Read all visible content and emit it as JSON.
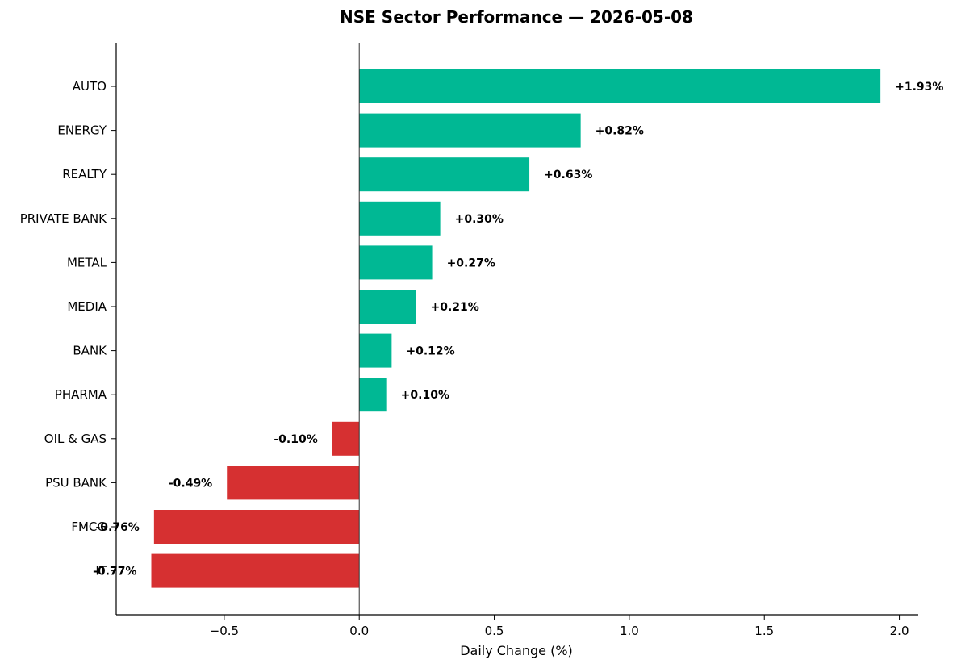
{
  "chart_data": {
    "type": "bar",
    "orientation": "horizontal",
    "title": "NSE Sector Performance — 2026-05-08",
    "xlabel": "Daily Change (%)",
    "ylabel": "",
    "xlim": [
      -0.9,
      2.07
    ],
    "xticks": [
      -0.5,
      0.0,
      0.5,
      1.0,
      1.5,
      2.0
    ],
    "xtick_labels": [
      "−0.5",
      "0.0",
      "0.5",
      "1.0",
      "1.5",
      "2.0"
    ],
    "grid": false,
    "categories": [
      "AUTO",
      "ENERGY",
      "REALTY",
      "PRIVATE BANK",
      "METAL",
      "MEDIA",
      "BANK",
      "PHARMA",
      "OIL & GAS",
      "PSU BANK",
      "FMCG",
      "IT"
    ],
    "values": [
      1.93,
      0.82,
      0.63,
      0.3,
      0.27,
      0.21,
      0.12,
      0.1,
      -0.1,
      -0.49,
      -0.76,
      -0.77
    ],
    "value_labels": [
      "+1.93%",
      "+0.82%",
      "+0.63%",
      "+0.30%",
      "+0.27%",
      "+0.21%",
      "+0.12%",
      "+0.10%",
      "-0.10%",
      "-0.49%",
      "-0.76%",
      "-0.77%"
    ],
    "colors": {
      "positive": "#00b894",
      "negative": "#d63031"
    }
  }
}
